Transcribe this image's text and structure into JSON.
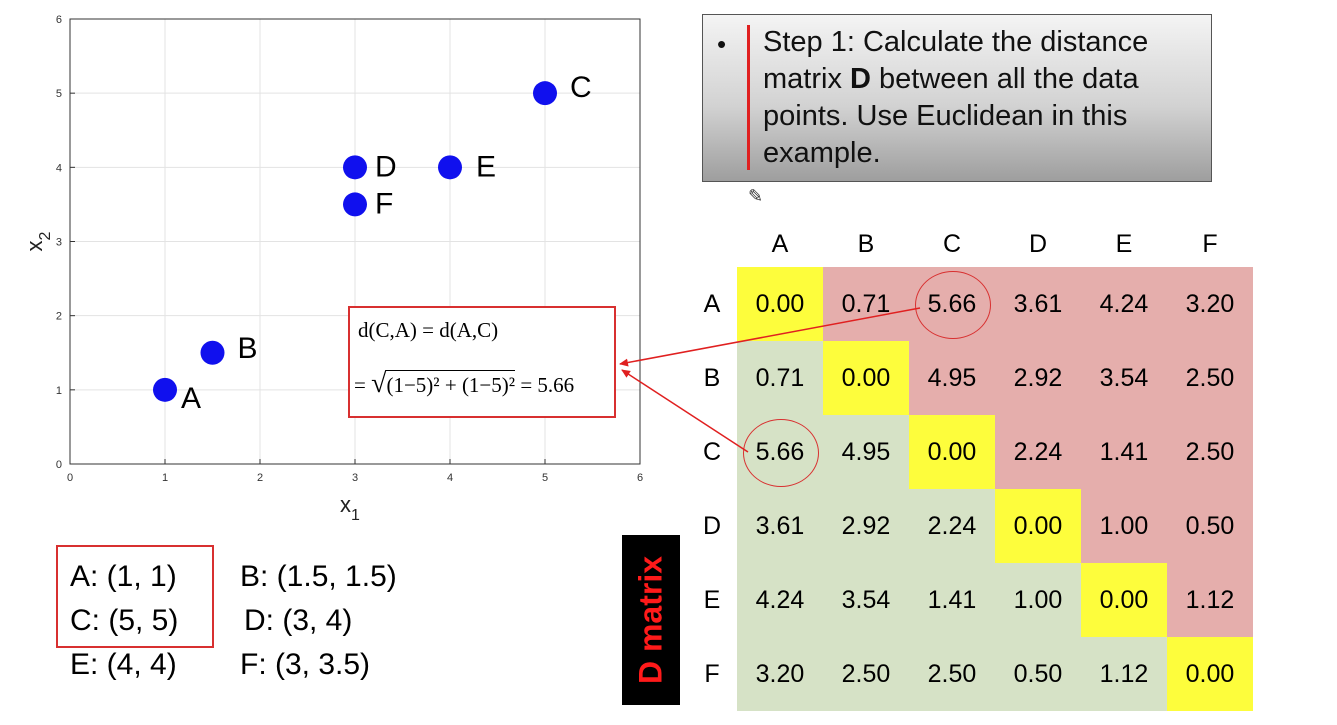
{
  "chart_data": {
    "type": "scatter",
    "xlabel": "x",
    "xlabel_sub": "1",
    "ylabel": "x",
    "ylabel_sub": "2",
    "xlim": [
      0,
      6
    ],
    "ylim": [
      0,
      6
    ],
    "xticks": [
      "0",
      "1",
      "2",
      "3",
      "4",
      "5",
      "6"
    ],
    "yticks": [
      "0",
      "1",
      "2",
      "3",
      "4",
      "5",
      "6"
    ],
    "grid": true,
    "marker_color": "#1010ee",
    "points": [
      {
        "label": "A",
        "x": 1,
        "y": 1
      },
      {
        "label": "B",
        "x": 1.5,
        "y": 1.5
      },
      {
        "label": "C",
        "x": 5,
        "y": 5
      },
      {
        "label": "D",
        "x": 3,
        "y": 4
      },
      {
        "label": "E",
        "x": 4,
        "y": 4
      },
      {
        "label": "F",
        "x": 3,
        "y": 3.5
      }
    ]
  },
  "step": {
    "bullet": "•",
    "text_before": "Step 1: Calculate the distance matrix ",
    "text_bold": "D",
    "text_after": " between all the data points. Use Euclidean in this example."
  },
  "formula": {
    "line1": "d(C,A) = d(A,C)",
    "line2_prefix": "= ",
    "line2_radicand": "(1−5)² + (1−5)²",
    "line2_result": " = 5.66"
  },
  "coordinates": [
    "A: (1, 1)",
    "B: (1.5, 1.5)",
    "C: (5, 5)",
    "D: (3, 4)",
    "E: (4, 4)",
    "F: (3, 3.5)"
  ],
  "matrix": {
    "label": "D matrix",
    "headers": [
      "A",
      "B",
      "C",
      "D",
      "E",
      "F"
    ],
    "rows": [
      [
        "0.00",
        "0.71",
        "5.66",
        "3.61",
        "4.24",
        "3.20"
      ],
      [
        "0.71",
        "0.00",
        "4.95",
        "2.92",
        "3.54",
        "2.50"
      ],
      [
        "5.66",
        "4.95",
        "0.00",
        "2.24",
        "1.41",
        "2.50"
      ],
      [
        "3.61",
        "2.92",
        "2.24",
        "0.00",
        "1.00",
        "0.50"
      ],
      [
        "4.24",
        "3.54",
        "1.41",
        "1.00",
        "0.00",
        "1.12"
      ],
      [
        "3.20",
        "2.50",
        "2.50",
        "0.50",
        "1.12",
        "0.00"
      ]
    ],
    "highlighted": [
      [
        0,
        2
      ],
      [
        2,
        0
      ]
    ],
    "colors": {
      "diagonal": "#fdfd3c",
      "lower": "#d6e2c6",
      "upper": "#e5aeac"
    }
  }
}
